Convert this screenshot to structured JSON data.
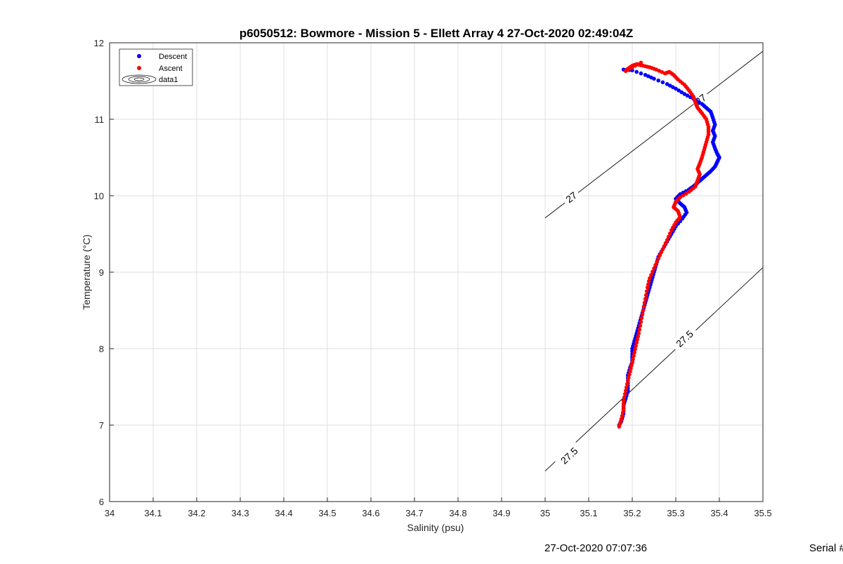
{
  "footer": {
    "timestamp": "27-Oct-2020 07:07:36",
    "serial": "Serial #"
  },
  "chart_data": {
    "type": "scatter",
    "title": "p6050512: Bowmore - Mission 5 - Ellett Array 4 27-Oct-2020 02:49:04Z",
    "xlabel": "Salinity (psu)",
    "ylabel": "Temperature (°C)",
    "xlim": [
      34,
      35.5
    ],
    "ylim": [
      6,
      12
    ],
    "x_ticks": [
      34,
      34.1,
      34.2,
      34.3,
      34.4,
      34.5,
      34.6,
      34.7,
      34.8,
      34.9,
      35,
      35.1,
      35.2,
      35.3,
      35.4,
      35.5
    ],
    "x_tick_labels": [
      "34",
      "34.1",
      "34.2",
      "34.3",
      "34.4",
      "34.5",
      "34.6",
      "34.7",
      "34.8",
      "34.9",
      "35",
      "35.1",
      "35.2",
      "35.3",
      "35.4",
      "35.5"
    ],
    "y_ticks": [
      6,
      7,
      8,
      9,
      10,
      11,
      12
    ],
    "y_tick_labels": [
      "6",
      "7",
      "8",
      "9",
      "10",
      "11",
      "12"
    ],
    "grid": true,
    "legend_position": "top-left",
    "legend": [
      "Descent",
      "Ascent",
      "data1"
    ],
    "series": [
      {
        "name": "Descent",
        "color": "#0000ff",
        "points": [
          [
            35.18,
            11.65
          ],
          [
            35.2,
            11.64
          ],
          [
            35.23,
            11.58
          ],
          [
            35.25,
            11.53
          ],
          [
            35.28,
            11.46
          ],
          [
            35.3,
            11.4
          ],
          [
            35.32,
            11.33
          ],
          [
            35.34,
            11.27
          ],
          [
            35.36,
            11.2
          ],
          [
            35.37,
            11.15
          ],
          [
            35.38,
            11.1
          ],
          [
            35.385,
            11.02
          ],
          [
            35.39,
            10.93
          ],
          [
            35.385,
            10.85
          ],
          [
            35.39,
            10.78
          ],
          [
            35.385,
            10.7
          ],
          [
            35.39,
            10.62
          ],
          [
            35.395,
            10.55
          ],
          [
            35.4,
            10.5
          ],
          [
            35.395,
            10.44
          ],
          [
            35.39,
            10.38
          ],
          [
            35.38,
            10.32
          ],
          [
            35.37,
            10.27
          ],
          [
            35.36,
            10.22
          ],
          [
            35.35,
            10.17
          ],
          [
            35.34,
            10.12
          ],
          [
            35.33,
            10.08
          ],
          [
            35.31,
            10.02
          ],
          [
            35.3,
            9.96
          ],
          [
            35.31,
            9.9
          ],
          [
            35.32,
            9.85
          ],
          [
            35.325,
            9.78
          ],
          [
            35.315,
            9.7
          ],
          [
            35.3,
            9.6
          ],
          [
            35.29,
            9.5
          ],
          [
            35.28,
            9.4
          ],
          [
            35.27,
            9.3
          ],
          [
            35.26,
            9.2
          ],
          [
            35.255,
            9.1
          ],
          [
            35.25,
            9.0
          ],
          [
            35.245,
            8.9
          ],
          [
            35.24,
            8.8
          ],
          [
            35.235,
            8.7
          ],
          [
            35.23,
            8.6
          ],
          [
            35.225,
            8.5
          ],
          [
            35.22,
            8.4
          ],
          [
            35.215,
            8.3
          ],
          [
            35.21,
            8.2
          ],
          [
            35.205,
            8.1
          ],
          [
            35.2,
            8.0
          ],
          [
            35.2,
            7.9
          ],
          [
            35.2,
            7.82
          ],
          [
            35.195,
            7.75
          ],
          [
            35.19,
            7.65
          ],
          [
            35.19,
            7.55
          ],
          [
            35.19,
            7.45
          ],
          [
            35.185,
            7.35
          ],
          [
            35.18,
            7.25
          ],
          [
            35.18,
            7.15
          ],
          [
            35.175,
            7.05
          ],
          [
            35.17,
            7.0
          ]
        ]
      },
      {
        "name": "Ascent",
        "color": "#ff0000",
        "points": [
          [
            35.17,
            6.98
          ],
          [
            35.175,
            7.08
          ],
          [
            35.18,
            7.2
          ],
          [
            35.18,
            7.32
          ],
          [
            35.185,
            7.45
          ],
          [
            35.19,
            7.58
          ],
          [
            35.195,
            7.7
          ],
          [
            35.2,
            7.82
          ],
          [
            35.205,
            7.95
          ],
          [
            35.21,
            8.08
          ],
          [
            35.215,
            8.2
          ],
          [
            35.22,
            8.35
          ],
          [
            35.225,
            8.5
          ],
          [
            35.23,
            8.65
          ],
          [
            35.235,
            8.8
          ],
          [
            35.24,
            8.92
          ],
          [
            35.25,
            9.05
          ],
          [
            35.26,
            9.18
          ],
          [
            35.27,
            9.3
          ],
          [
            35.28,
            9.42
          ],
          [
            35.29,
            9.55
          ],
          [
            35.3,
            9.65
          ],
          [
            35.31,
            9.72
          ],
          [
            35.305,
            9.8
          ],
          [
            35.295,
            9.85
          ],
          [
            35.3,
            9.92
          ],
          [
            35.31,
            9.98
          ],
          [
            35.33,
            10.05
          ],
          [
            35.345,
            10.12
          ],
          [
            35.35,
            10.2
          ],
          [
            35.355,
            10.28
          ],
          [
            35.35,
            10.35
          ],
          [
            35.355,
            10.42
          ],
          [
            35.36,
            10.5
          ],
          [
            35.365,
            10.6
          ],
          [
            35.37,
            10.7
          ],
          [
            35.375,
            10.8
          ],
          [
            35.375,
            10.9
          ],
          [
            35.37,
            11.0
          ],
          [
            35.36,
            11.08
          ],
          [
            35.35,
            11.15
          ],
          [
            35.345,
            11.22
          ],
          [
            35.34,
            11.3
          ],
          [
            35.33,
            11.38
          ],
          [
            35.32,
            11.45
          ],
          [
            35.305,
            11.52
          ],
          [
            35.295,
            11.58
          ],
          [
            35.285,
            11.62
          ],
          [
            35.275,
            11.6
          ],
          [
            35.255,
            11.65
          ],
          [
            35.24,
            11.68
          ],
          [
            35.225,
            11.7
          ],
          [
            35.21,
            11.72
          ],
          [
            35.2,
            11.7
          ],
          [
            35.19,
            11.66
          ],
          [
            35.185,
            11.63
          ],
          [
            35.2,
            11.68
          ],
          [
            35.22,
            11.74
          ]
        ]
      }
    ],
    "contours": [
      {
        "label": "27",
        "points": [
          [
            35.0,
            9.71
          ],
          [
            35.5,
            11.89
          ]
        ],
        "label_positions": [
          [
            35.06,
            9.98
          ],
          [
            35.357,
            11.26
          ]
        ]
      },
      {
        "label": "27.5",
        "points": [
          [
            35.0,
            6.4
          ],
          [
            35.5,
            9.06
          ]
        ],
        "label_positions": [
          [
            35.055,
            6.6
          ],
          [
            35.32,
            8.13
          ]
        ]
      }
    ]
  }
}
